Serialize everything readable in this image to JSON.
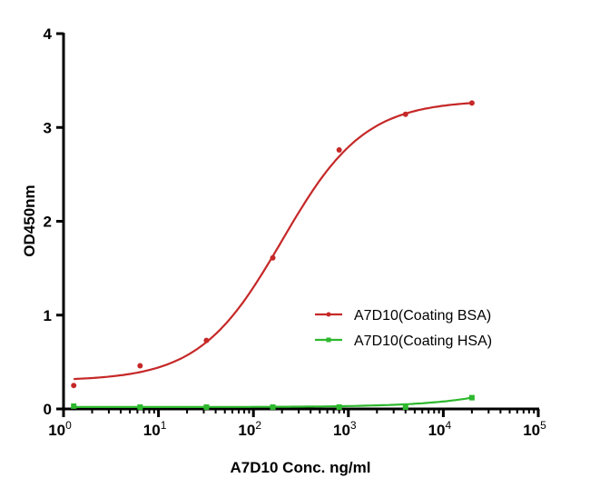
{
  "chart_data": {
    "type": "scatter",
    "title": "",
    "xlabel": "A7D10 Conc. ng/ml",
    "ylabel": "OD450nm",
    "xscale": "log",
    "xlim": [
      1,
      100000
    ],
    "ylim": [
      0,
      4
    ],
    "xticks": [
      1,
      10,
      100,
      1000,
      10000,
      100000
    ],
    "xtick_labels": [
      {
        "base": "10",
        "exp": "0"
      },
      {
        "base": "10",
        "exp": "1"
      },
      {
        "base": "10",
        "exp": "2"
      },
      {
        "base": "10",
        "exp": "3"
      },
      {
        "base": "10",
        "exp": "4"
      },
      {
        "base": "10",
        "exp": "5"
      }
    ],
    "yticks": [
      0,
      1,
      2,
      3,
      4
    ],
    "ytick_labels": [
      "0",
      "1",
      "2",
      "3",
      "4"
    ],
    "grid": false,
    "legend_position": "right",
    "series": [
      {
        "name": "A7D10(Coating BSA)",
        "color": "#c62828",
        "marker": "circle",
        "x": [
          1.28,
          6.4,
          32,
          160,
          800,
          4000,
          20000
        ],
        "y": [
          0.25,
          0.46,
          0.73,
          1.61,
          2.76,
          3.14,
          3.26
        ]
      },
      {
        "name": "A7D10(Coating HSA)",
        "color": "#2db82d",
        "marker": "square",
        "x": [
          1.28,
          6.4,
          32,
          160,
          800,
          4000,
          20000
        ],
        "y": [
          0.03,
          0.02,
          0.02,
          0.02,
          0.02,
          0.02,
          0.12
        ]
      }
    ]
  }
}
